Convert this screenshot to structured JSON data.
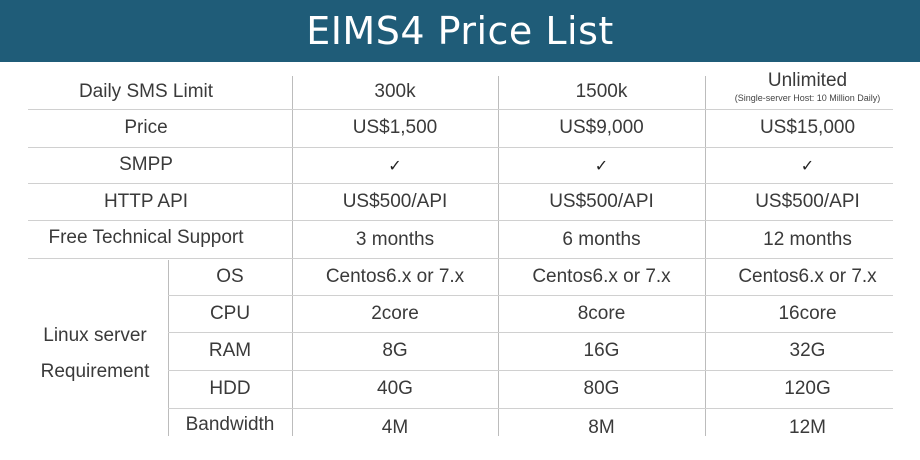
{
  "title": "EIMS4 Price List",
  "rows": {
    "daily_sms": {
      "label": "Daily SMS Limit",
      "values": [
        "300k",
        "1500k",
        "Unlimited"
      ],
      "note": "(Single-server Host: 10 Million Daily)"
    },
    "price": {
      "label": "Price",
      "values": [
        "US$1,500",
        "US$9,000",
        "US$15,000"
      ]
    },
    "smpp": {
      "label": "SMPP",
      "values": [
        "✓",
        "✓",
        "✓"
      ]
    },
    "http_api": {
      "label": "HTTP API",
      "values": [
        "US$500/API",
        "US$500/API",
        "US$500/API"
      ]
    },
    "support": {
      "label": "Free Technical Support",
      "values": [
        "3 months",
        "6 months",
        "12 months"
      ]
    }
  },
  "linux": {
    "label_line1": "Linux server",
    "label_line2": "Requirement",
    "os": {
      "label": "OS",
      "values": [
        "Centos6.x or 7.x",
        "Centos6.x or 7.x",
        "Centos6.x or 7.x"
      ]
    },
    "cpu": {
      "label": "CPU",
      "values": [
        "2core",
        "8core",
        "16core"
      ]
    },
    "ram": {
      "label": "RAM",
      "values": [
        "8G",
        "16G",
        "32G"
      ]
    },
    "hdd": {
      "label": "HDD",
      "values": [
        "40G",
        "80G",
        "120G"
      ]
    },
    "bandwidth": {
      "label": "Bandwidth",
      "values": [
        "4M",
        "8M",
        "12M"
      ]
    }
  }
}
